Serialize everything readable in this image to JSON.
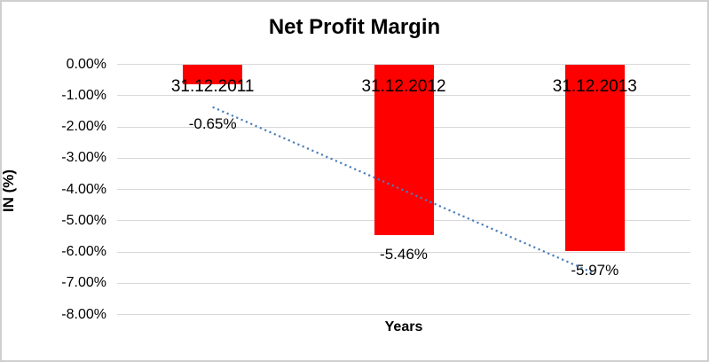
{
  "chart": {
    "title": "Net Profit Margin",
    "x_axis_title": "Years",
    "y_axis_title": "IN (%)"
  },
  "chart_data": {
    "type": "bar",
    "title": "Net Profit Margin",
    "xlabel": "Years",
    "ylabel": "IN (%)",
    "categories": [
      "31.12.2011",
      "31.12.2012",
      "31.12.2013"
    ],
    "values": [
      -0.65,
      -5.46,
      -5.97
    ],
    "data_labels": [
      "-0.65%",
      "-5.46%",
      "-5.97%"
    ],
    "ytick_values": [
      0,
      -1,
      -2,
      -3,
      -4,
      -5,
      -6,
      -7,
      -8
    ],
    "ytick_labels": [
      "0.00%",
      "-1.00%",
      "-2.00%",
      "-3.00%",
      "-4.00%",
      "-5.00%",
      "-6.00%",
      "-7.00%",
      "-8.00%"
    ],
    "ylim": [
      -8,
      0
    ],
    "grid": true,
    "legend": false,
    "bar_color": "#FF0000",
    "gridline_color": "#D9D9D9",
    "text_color": "#000000",
    "trendline": {
      "type": "linear",
      "style": "dotted",
      "color": "#4A7EBB",
      "fit_values": [
        -1.37,
        -4.03,
        -6.69
      ]
    }
  }
}
